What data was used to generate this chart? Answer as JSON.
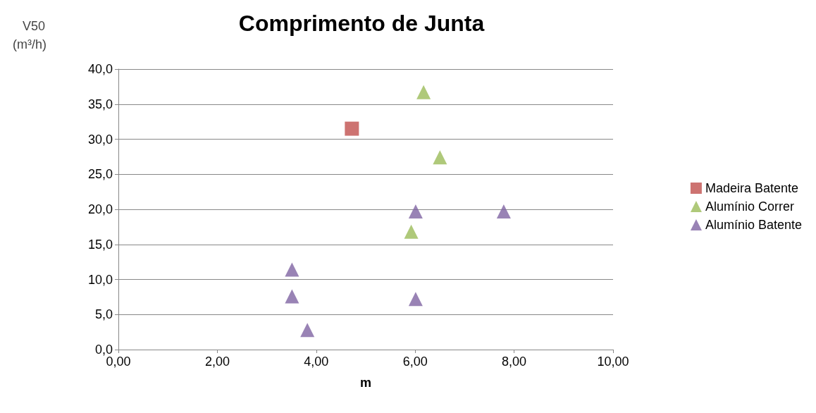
{
  "chart_data": {
    "type": "scatter",
    "title": "Comprimento de Junta",
    "xlabel": "m",
    "ylabel": "V50\n(m³/h)",
    "xlim": [
      0,
      10
    ],
    "xticks": [
      {
        "value": 0,
        "label": "0,00"
      },
      {
        "value": 2,
        "label": "2,00"
      },
      {
        "value": 4,
        "label": "4,00"
      },
      {
        "value": 6,
        "label": "6,00"
      },
      {
        "value": 8,
        "label": "8,00"
      },
      {
        "value": 10,
        "label": "10,00"
      }
    ],
    "ylim": [
      0,
      40
    ],
    "yticks": [
      {
        "value": 0,
        "label": "0,0"
      },
      {
        "value": 5,
        "label": "5,0"
      },
      {
        "value": 10,
        "label": "10,0"
      },
      {
        "value": 15,
        "label": "15,0"
      },
      {
        "value": 20,
        "label": "20,0"
      },
      {
        "value": 25,
        "label": "25,0"
      },
      {
        "value": 30,
        "label": "30,0"
      },
      {
        "value": 35,
        "label": "35,0"
      },
      {
        "value": 40,
        "label": "40,0"
      }
    ],
    "grid": "y",
    "legend": "right",
    "series": [
      {
        "name": "Madeira Batente",
        "color": "#c0504d",
        "marker": "square",
        "x": [
          4.72
        ],
        "values": [
          31.5
        ]
      },
      {
        "name": "Alumínio Correr",
        "color": "#9bbb59",
        "marker": "triangle",
        "x": [
          6.17,
          6.5,
          5.92
        ],
        "values": [
          36.7,
          27.4,
          16.8
        ]
      },
      {
        "name": "Alumínio Batente",
        "color": "#8064a2",
        "marker": "triangle",
        "x": [
          6.01,
          7.79,
          3.51,
          3.51,
          6.01,
          3.82
        ],
        "values": [
          19.7,
          19.7,
          11.4,
          7.6,
          7.2,
          2.8
        ]
      }
    ]
  }
}
